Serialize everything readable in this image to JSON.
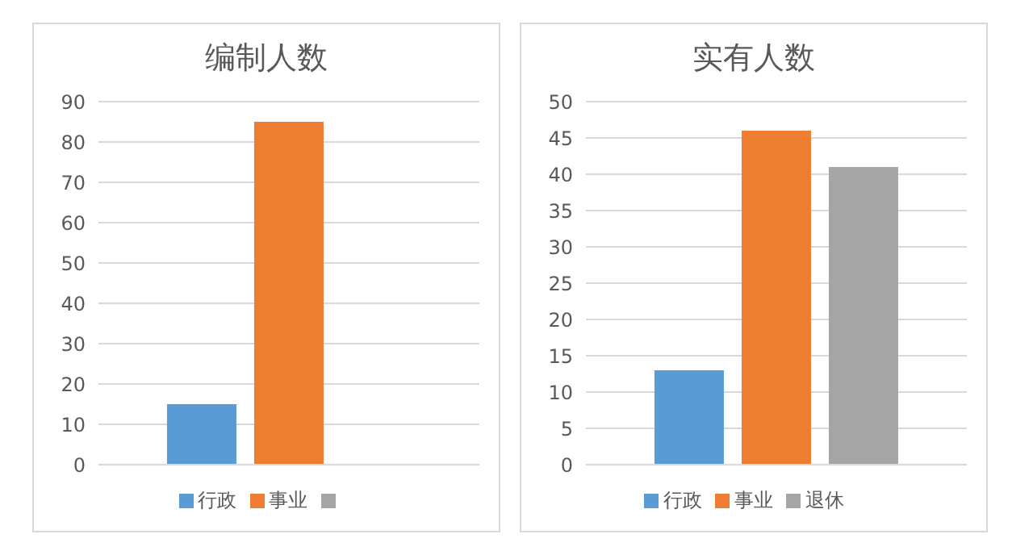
{
  "chart_data": [
    {
      "type": "bar",
      "title": "编制人数",
      "categories": [
        null
      ],
      "series": [
        {
          "name": "行政",
          "color": "#5b9bd5",
          "values": [
            15
          ]
        },
        {
          "name": "事业",
          "color": "#ed7d31",
          "values": [
            85
          ]
        },
        {
          "color": "#a5a5a5",
          "values": [
            null
          ]
        }
      ],
      "ylim": [
        0,
        90
      ],
      "yticks": [
        0,
        10,
        20,
        30,
        40,
        50,
        60,
        70,
        80,
        90
      ],
      "grid": "y",
      "legend": "bottom"
    },
    {
      "type": "bar",
      "title": "实有人数",
      "categories": [
        null
      ],
      "series": [
        {
          "name": "行政",
          "color": "#5b9bd5",
          "values": [
            13
          ]
        },
        {
          "name": "事业",
          "color": "#ed7d31",
          "values": [
            46
          ]
        },
        {
          "name": "退休",
          "color": "#a5a5a5",
          "values": [
            41
          ]
        }
      ],
      "ylim": [
        0,
        50
      ],
      "yticks": [
        0,
        5,
        10,
        15,
        20,
        25,
        30,
        35,
        40,
        45,
        50
      ],
      "grid": "y",
      "legend": "bottom"
    }
  ]
}
